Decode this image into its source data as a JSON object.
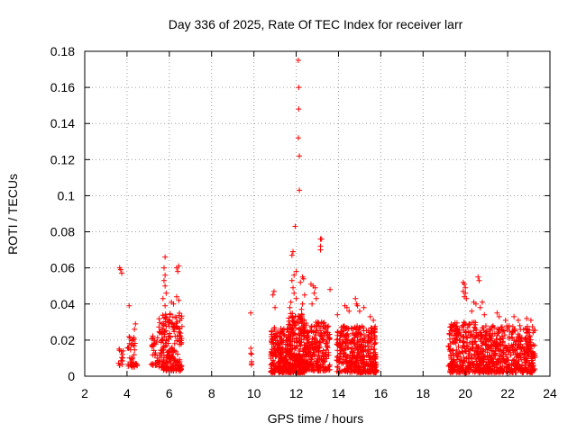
{
  "chart_data": {
    "type": "scatter",
    "title": "Day 336 of 2025, Rate Of TEC Index for receiver larr",
    "xlabel": "GPS time / hours",
    "ylabel": "ROTI / TECUs",
    "xlim": [
      2,
      24
    ],
    "ylim": [
      0,
      0.18
    ],
    "xticks": [
      "2",
      "4",
      "6",
      "8",
      "10",
      "12",
      "14",
      "16",
      "18",
      "20",
      "22",
      "24"
    ],
    "yticks": [
      "0",
      "0.02",
      "0.04",
      "0.06",
      "0.08",
      "0.1",
      "0.12",
      "0.14",
      "0.16",
      "0.18"
    ],
    "grid": true,
    "legend": "none",
    "marker": "plus",
    "color": "#ff0000",
    "clusters": [
      {
        "x_start": 3.6,
        "x_end": 3.9,
        "y_min": 0.006,
        "y_max": 0.016,
        "count": 14
      },
      {
        "x_start": 4.0,
        "x_end": 4.5,
        "y_min": 0.005,
        "y_max": 0.022,
        "count": 40
      },
      {
        "x_start": 5.1,
        "x_end": 5.5,
        "y_min": 0.006,
        "y_max": 0.024,
        "count": 30
      },
      {
        "x_start": 5.5,
        "x_end": 6.6,
        "y_min": 0.003,
        "y_max": 0.035,
        "count": 220
      },
      {
        "x_start": 9.8,
        "x_end": 9.9,
        "y_min": 0.006,
        "y_max": 0.016,
        "count": 6
      },
      {
        "x_start": 10.8,
        "x_end": 11.6,
        "y_min": 0.002,
        "y_max": 0.028,
        "count": 220
      },
      {
        "x_start": 11.6,
        "x_end": 12.4,
        "y_min": 0.002,
        "y_max": 0.035,
        "count": 300
      },
      {
        "x_start": 12.4,
        "x_end": 13.6,
        "y_min": 0.003,
        "y_max": 0.03,
        "count": 240
      },
      {
        "x_start": 13.9,
        "x_end": 15.8,
        "y_min": 0.002,
        "y_max": 0.028,
        "count": 420
      },
      {
        "x_start": 19.2,
        "x_end": 20.6,
        "y_min": 0.002,
        "y_max": 0.03,
        "count": 300
      },
      {
        "x_start": 20.6,
        "x_end": 23.3,
        "y_min": 0.002,
        "y_max": 0.028,
        "count": 560
      }
    ],
    "points": [
      {
        "x": 3.65,
        "y": 0.06
      },
      {
        "x": 3.7,
        "y": 0.059
      },
      {
        "x": 3.75,
        "y": 0.057
      },
      {
        "x": 4.1,
        "y": 0.039
      },
      {
        "x": 4.4,
        "y": 0.029
      },
      {
        "x": 4.35,
        "y": 0.026
      },
      {
        "x": 5.8,
        "y": 0.066
      },
      {
        "x": 5.75,
        "y": 0.06
      },
      {
        "x": 5.8,
        "y": 0.056
      },
      {
        "x": 5.75,
        "y": 0.053
      },
      {
        "x": 5.8,
        "y": 0.05
      },
      {
        "x": 5.85,
        "y": 0.046
      },
      {
        "x": 5.7,
        "y": 0.043
      },
      {
        "x": 5.8,
        "y": 0.039
      },
      {
        "x": 6.1,
        "y": 0.041
      },
      {
        "x": 6.2,
        "y": 0.04
      },
      {
        "x": 6.35,
        "y": 0.06
      },
      {
        "x": 6.45,
        "y": 0.061
      },
      {
        "x": 6.4,
        "y": 0.058
      },
      {
        "x": 6.35,
        "y": 0.044
      },
      {
        "x": 6.45,
        "y": 0.042
      },
      {
        "x": 9.85,
        "y": 0.035
      },
      {
        "x": 10.95,
        "y": 0.047
      },
      {
        "x": 10.9,
        "y": 0.045
      },
      {
        "x": 11.0,
        "y": 0.038
      },
      {
        "x": 11.8,
        "y": 0.067
      },
      {
        "x": 11.85,
        "y": 0.069
      },
      {
        "x": 11.95,
        "y": 0.083
      },
      {
        "x": 11.9,
        "y": 0.056
      },
      {
        "x": 12.0,
        "y": 0.058
      },
      {
        "x": 11.8,
        "y": 0.053
      },
      {
        "x": 11.85,
        "y": 0.049
      },
      {
        "x": 11.9,
        "y": 0.046
      },
      {
        "x": 12.0,
        "y": 0.043
      },
      {
        "x": 11.75,
        "y": 0.041
      },
      {
        "x": 11.7,
        "y": 0.038
      },
      {
        "x": 12.1,
        "y": 0.175
      },
      {
        "x": 12.12,
        "y": 0.16
      },
      {
        "x": 12.12,
        "y": 0.148
      },
      {
        "x": 12.1,
        "y": 0.132
      },
      {
        "x": 12.15,
        "y": 0.122
      },
      {
        "x": 12.15,
        "y": 0.103
      },
      {
        "x": 12.2,
        "y": 0.052
      },
      {
        "x": 12.3,
        "y": 0.055
      },
      {
        "x": 12.35,
        "y": 0.054
      },
      {
        "x": 12.4,
        "y": 0.045
      },
      {
        "x": 12.3,
        "y": 0.04
      },
      {
        "x": 12.25,
        "y": 0.037
      },
      {
        "x": 12.7,
        "y": 0.051
      },
      {
        "x": 12.8,
        "y": 0.05
      },
      {
        "x": 12.9,
        "y": 0.049
      },
      {
        "x": 12.85,
        "y": 0.046
      },
      {
        "x": 12.95,
        "y": 0.043
      },
      {
        "x": 12.75,
        "y": 0.04
      },
      {
        "x": 13.15,
        "y": 0.076
      },
      {
        "x": 13.2,
        "y": 0.076
      },
      {
        "x": 13.15,
        "y": 0.072
      },
      {
        "x": 13.15,
        "y": 0.07
      },
      {
        "x": 13.6,
        "y": 0.048
      },
      {
        "x": 13.95,
        "y": 0.034
      },
      {
        "x": 14.3,
        "y": 0.039
      },
      {
        "x": 14.4,
        "y": 0.038
      },
      {
        "x": 14.5,
        "y": 0.036
      },
      {
        "x": 14.8,
        "y": 0.043
      },
      {
        "x": 14.85,
        "y": 0.04
      },
      {
        "x": 14.9,
        "y": 0.039
      },
      {
        "x": 15.0,
        "y": 0.036
      },
      {
        "x": 15.2,
        "y": 0.038
      },
      {
        "x": 15.5,
        "y": 0.033
      },
      {
        "x": 15.65,
        "y": 0.031
      },
      {
        "x": 19.9,
        "y": 0.052
      },
      {
        "x": 19.95,
        "y": 0.051
      },
      {
        "x": 20.0,
        "y": 0.049
      },
      {
        "x": 20.0,
        "y": 0.046
      },
      {
        "x": 19.95,
        "y": 0.044
      },
      {
        "x": 20.05,
        "y": 0.043
      },
      {
        "x": 19.9,
        "y": 0.047
      },
      {
        "x": 20.4,
        "y": 0.041
      },
      {
        "x": 20.5,
        "y": 0.04
      },
      {
        "x": 20.6,
        "y": 0.055
      },
      {
        "x": 20.65,
        "y": 0.053
      },
      {
        "x": 20.8,
        "y": 0.041
      },
      {
        "x": 20.7,
        "y": 0.038
      },
      {
        "x": 20.3,
        "y": 0.036
      },
      {
        "x": 20.9,
        "y": 0.034
      },
      {
        "x": 21.5,
        "y": 0.035
      },
      {
        "x": 21.6,
        "y": 0.033
      },
      {
        "x": 21.9,
        "y": 0.031
      },
      {
        "x": 22.3,
        "y": 0.033
      },
      {
        "x": 22.5,
        "y": 0.031
      },
      {
        "x": 22.9,
        "y": 0.032
      },
      {
        "x": 23.1,
        "y": 0.031
      }
    ]
  }
}
